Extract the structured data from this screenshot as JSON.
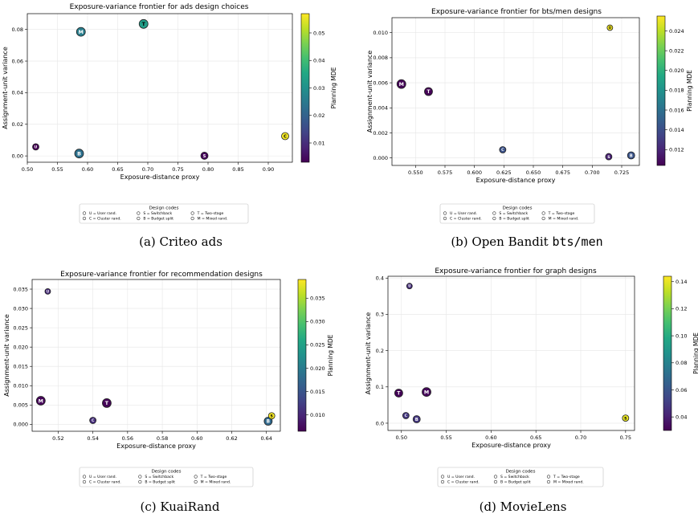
{
  "panels": [
    {
      "caption_prefix": "(a) Criteo ads",
      "caption_mono": "",
      "chart_data": {
        "type": "scatter",
        "title": "Exposure-variance frontier for ads design choices",
        "xlabel": "Exposure-distance proxy",
        "ylabel": "Assignment-unit variance",
        "colorbar_label": "Planning MDE",
        "xlim": [
          0.5,
          0.94
        ],
        "ylim": [
          -0.004,
          0.09
        ],
        "xticks": [
          0.5,
          0.55,
          0.6,
          0.65,
          0.7,
          0.75,
          0.8,
          0.85,
          0.9
        ],
        "xtick_labels": [
          "0.50",
          "0.55",
          "0.60",
          "0.65",
          "0.70",
          "0.75",
          "0.80",
          "0.85",
          "0.90"
        ],
        "yticks": [
          0.0,
          0.02,
          0.04,
          0.06,
          0.08
        ],
        "ytick_labels": [
          "0.00",
          "0.02",
          "0.04",
          "0.06",
          "0.08"
        ],
        "clim": [
          0.003,
          0.057
        ],
        "cticks": [
          0.01,
          0.02,
          0.03,
          0.04,
          0.05
        ],
        "ctick_labels": [
          "0.01",
          "0.02",
          "0.03",
          "0.04",
          "0.05"
        ],
        "grid": true,
        "points": [
          {
            "code": "U",
            "x": 0.514,
            "y": 0.0057,
            "mde": 0.003,
            "size": 7
          },
          {
            "code": "M",
            "x": 0.589,
            "y": 0.0785,
            "mde": 0.026,
            "size": 10
          },
          {
            "code": "T",
            "x": 0.693,
            "y": 0.0835,
            "mde": 0.033,
            "size": 10
          },
          {
            "code": "B",
            "x": 0.586,
            "y": 0.0015,
            "mde": 0.023,
            "size": 10
          },
          {
            "code": "S",
            "x": 0.794,
            "y": 0.0001,
            "mde": 0.004,
            "size": 8
          },
          {
            "code": "C",
            "x": 0.928,
            "y": 0.0125,
            "mde": 0.056,
            "size": 8
          }
        ]
      }
    },
    {
      "caption_prefix": "(b) Open Bandit ",
      "caption_mono": "bts/men",
      "chart_data": {
        "type": "scatter",
        "title": "Exposure-variance frontier for bts/men designs",
        "xlabel": "Exposure-distance proxy",
        "ylabel": "Assignment-unit variance",
        "colorbar_label": "Planning MDE",
        "xlim": [
          0.53,
          0.74
        ],
        "ylim": [
          -0.0006,
          0.0112
        ],
        "xticks": [
          0.55,
          0.575,
          0.6,
          0.625,
          0.65,
          0.675,
          0.7,
          0.725
        ],
        "xtick_labels": [
          "0.550",
          "0.575",
          "0.600",
          "0.625",
          "0.650",
          "0.675",
          "0.700",
          "0.725"
        ],
        "yticks": [
          0.0,
          0.002,
          0.004,
          0.006,
          0.008,
          0.01
        ],
        "ytick_labels": [
          "0.000",
          "0.002",
          "0.004",
          "0.006",
          "0.008",
          "0.010"
        ],
        "clim": [
          0.0104,
          0.0255
        ],
        "cticks": [
          0.012,
          0.014,
          0.016,
          0.018,
          0.02,
          0.022,
          0.024
        ],
        "ctick_labels": [
          "0.012",
          "0.014",
          "0.016",
          "0.018",
          "0.020",
          "0.022",
          "0.024"
        ],
        "grid": true,
        "points": [
          {
            "code": "U",
            "x": 0.715,
            "y": 0.0104,
            "mde": 0.0252,
            "size": 6
          },
          {
            "code": "M",
            "x": 0.538,
            "y": 0.0059,
            "mde": 0.0106,
            "size": 10
          },
          {
            "code": "T",
            "x": 0.561,
            "y": 0.0053,
            "mde": 0.0105,
            "size": 9
          },
          {
            "code": "C",
            "x": 0.624,
            "y": 0.00065,
            "mde": 0.0142,
            "size": 7
          },
          {
            "code": "S",
            "x": 0.714,
            "y": 0.0001,
            "mde": 0.0118,
            "size": 7
          },
          {
            "code": "B",
            "x": 0.733,
            "y": 0.0002,
            "mde": 0.0143,
            "size": 8
          }
        ]
      }
    },
    {
      "caption_prefix": "(c) KuaiRand",
      "caption_mono": "",
      "chart_data": {
        "type": "scatter",
        "title": "Exposure-variance frontier for recommendation designs",
        "xlabel": "Exposure-distance proxy",
        "ylabel": "Assignment-unit variance",
        "colorbar_label": "Planning MDE",
        "xlim": [
          0.505,
          0.648
        ],
        "ylim": [
          -0.0018,
          0.0375
        ],
        "xticks": [
          0.52,
          0.54,
          0.56,
          0.58,
          0.6,
          0.62,
          0.64
        ],
        "xtick_labels": [
          "0.52",
          "0.54",
          "0.56",
          "0.58",
          "0.60",
          "0.62",
          "0.64"
        ],
        "yticks": [
          0.0,
          0.005,
          0.01,
          0.015,
          0.02,
          0.025,
          0.03,
          0.035
        ],
        "ytick_labels": [
          "0.000",
          "0.005",
          "0.010",
          "0.015",
          "0.020",
          "0.025",
          "0.030",
          "0.035"
        ],
        "clim": [
          0.0065,
          0.039
        ],
        "cticks": [
          0.01,
          0.015,
          0.02,
          0.025,
          0.03,
          0.035
        ],
        "ctick_labels": [
          "0.010",
          "0.015",
          "0.020",
          "0.025",
          "0.030",
          "0.035"
        ],
        "grid": true,
        "points": [
          {
            "code": "U",
            "x": 0.514,
            "y": 0.0344,
            "mde": 0.0105,
            "size": 6
          },
          {
            "code": "M",
            "x": 0.51,
            "y": 0.0061,
            "mde": 0.007,
            "size": 10
          },
          {
            "code": "T",
            "x": 0.548,
            "y": 0.0055,
            "mde": 0.0068,
            "size": 10
          },
          {
            "code": "C",
            "x": 0.54,
            "y": 0.001,
            "mde": 0.0108,
            "size": 7
          },
          {
            "code": "B",
            "x": 0.641,
            "y": 0.0008,
            "mde": 0.0175,
            "size": 9
          },
          {
            "code": "S",
            "x": 0.643,
            "y": 0.0022,
            "mde": 0.0385,
            "size": 7
          }
        ]
      }
    },
    {
      "caption_prefix": "(d) MovieLens",
      "caption_mono": "",
      "chart_data": {
        "type": "scatter",
        "title": "Exposure-variance frontier for graph designs",
        "xlabel": "Exposure-distance proxy",
        "ylabel": "Assignment-unit variance",
        "colorbar_label": "Planning MDE",
        "xlim": [
          0.485,
          0.76
        ],
        "ylim": [
          -0.02,
          0.405
        ],
        "xticks": [
          0.5,
          0.55,
          0.6,
          0.65,
          0.7,
          0.75
        ],
        "xtick_labels": [
          "0.50",
          "0.55",
          "0.60",
          "0.65",
          "0.70",
          "0.75"
        ],
        "yticks": [
          0.0,
          0.1,
          0.2,
          0.3,
          0.4
        ],
        "ytick_labels": [
          "0.0",
          "0.1",
          "0.2",
          "0.3",
          "0.4"
        ],
        "clim": [
          0.03,
          0.144
        ],
        "cticks": [
          0.04,
          0.06,
          0.08,
          0.1,
          0.12,
          0.14
        ],
        "ctick_labels": [
          "0.04",
          "0.06",
          "0.08",
          "0.10",
          "0.12",
          "0.14"
        ],
        "grid": true,
        "points": [
          {
            "code": "U",
            "x": 0.509,
            "y": 0.378,
            "mde": 0.045,
            "size": 6
          },
          {
            "code": "T",
            "x": 0.497,
            "y": 0.083,
            "mde": 0.031,
            "size": 9
          },
          {
            "code": "M",
            "x": 0.528,
            "y": 0.086,
            "mde": 0.032,
            "size": 10
          },
          {
            "code": "C",
            "x": 0.505,
            "y": 0.021,
            "mde": 0.048,
            "size": 7
          },
          {
            "code": "B",
            "x": 0.517,
            "y": 0.011,
            "mde": 0.048,
            "size": 8
          },
          {
            "code": "S",
            "x": 0.75,
            "y": 0.014,
            "mde": 0.14,
            "size": 7
          }
        ]
      }
    }
  ],
  "legend": {
    "title": "Design codes",
    "entries": [
      "U = User rand.",
      "S = Switchback",
      "T = Two-stage",
      "C = Cluster rand.",
      "B = Budget split",
      "M = Mixed rand."
    ]
  }
}
